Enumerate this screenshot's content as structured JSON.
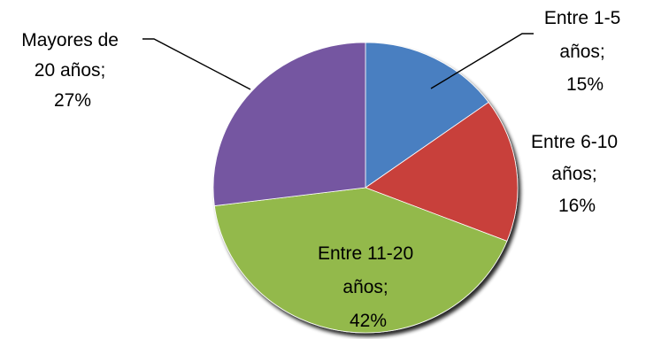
{
  "chart_data": {
    "type": "pie",
    "start_angle_deg": 0,
    "direction": "clockwise",
    "slices": [
      {
        "line1": "Entre 1-5",
        "line2": "años;",
        "line3": "15%",
        "value": 15,
        "color": "#4a7fc1"
      },
      {
        "line1": "Entre 6-10",
        "line2": "años;",
        "line3": "16%",
        "value": 16,
        "color": "#c8403a"
      },
      {
        "line1": "Entre 11-20",
        "line2": "años;",
        "line3": "42%",
        "value": 42,
        "color": "#93b94b"
      },
      {
        "line1": "Mayores de",
        "line2": "20 años;",
        "line3": "27%",
        "value": 27,
        "color": "#7457a1"
      }
    ]
  }
}
